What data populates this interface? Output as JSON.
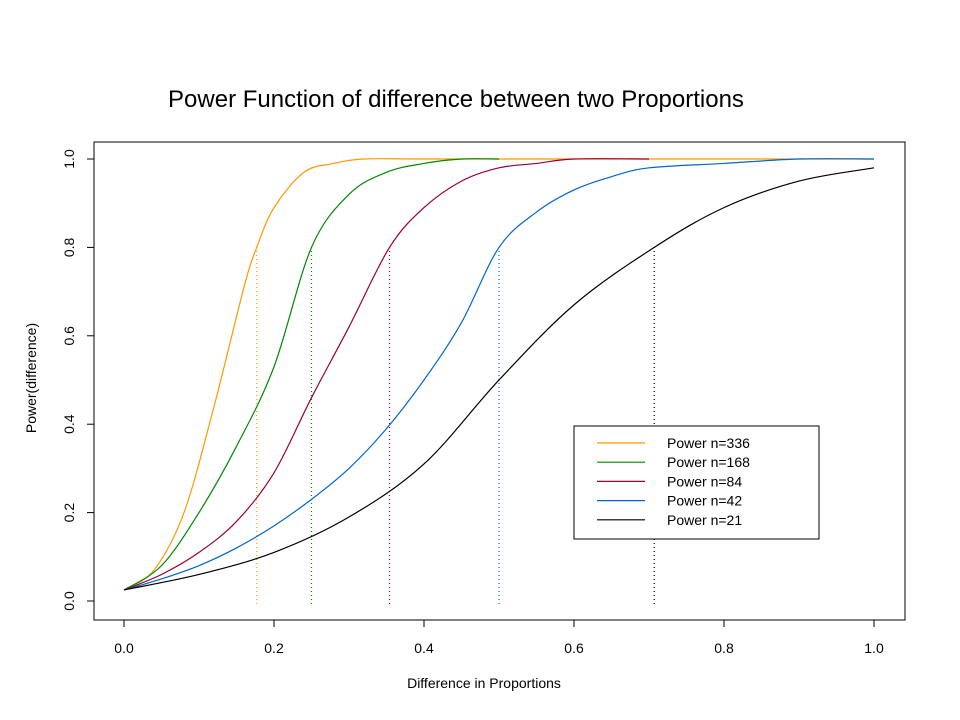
{
  "chart_data": {
    "type": "line",
    "title": "Power Function of difference between two Proportions",
    "xlabel": "Difference in Proportions",
    "ylabel": "Power(difference)",
    "xlim": [
      0.0,
      1.0
    ],
    "ylim": [
      0.0,
      1.0
    ],
    "x_ticks": [
      "0.0",
      "0.2",
      "0.4",
      "0.6",
      "0.8",
      "1.0"
    ],
    "y_ticks": [
      "0.0",
      "0.2",
      "0.4",
      "0.6",
      "0.8",
      "1.0"
    ],
    "grid": false,
    "legend": {
      "placement": "bottom-right",
      "entries": [
        "Power n=336",
        "Power n=168",
        "Power n=84",
        "Power n=42",
        "Power n=21"
      ]
    },
    "series": [
      {
        "name": "Power n=336",
        "color": "#ff9900",
        "marker_x": 0.177,
        "x": [
          0.0,
          0.04,
          0.08,
          0.12,
          0.16,
          0.177,
          0.2,
          0.24,
          0.28,
          0.32,
          0.4,
          0.6,
          1.0
        ],
        "y": [
          0.025,
          0.07,
          0.2,
          0.44,
          0.71,
          0.8,
          0.89,
          0.97,
          0.99,
          1.0,
          1.0,
          1.0,
          1.0
        ]
      },
      {
        "name": "Power n=168",
        "color": "#008800",
        "marker_x": 0.25,
        "x": [
          0.0,
          0.05,
          0.1,
          0.15,
          0.2,
          0.25,
          0.3,
          0.35,
          0.4,
          0.45,
          0.5
        ],
        "y": [
          0.025,
          0.08,
          0.2,
          0.35,
          0.53,
          0.8,
          0.92,
          0.97,
          0.99,
          1.0,
          1.0
        ]
      },
      {
        "name": "Power n=84",
        "color": "#990033",
        "marker_x": 0.354,
        "x": [
          0.0,
          0.05,
          0.1,
          0.15,
          0.2,
          0.25,
          0.3,
          0.354,
          0.4,
          0.45,
          0.5,
          0.55,
          0.6,
          0.7
        ],
        "y": [
          0.025,
          0.06,
          0.11,
          0.18,
          0.29,
          0.46,
          0.62,
          0.8,
          0.89,
          0.95,
          0.98,
          0.99,
          1.0,
          1.0
        ]
      },
      {
        "name": "Power n=42",
        "color": "#0066cc",
        "marker_x": 0.5,
        "x": [
          0.0,
          0.05,
          0.1,
          0.15,
          0.2,
          0.25,
          0.3,
          0.35,
          0.4,
          0.45,
          0.5,
          0.55,
          0.6,
          0.65,
          0.7,
          0.8,
          0.9,
          1.0
        ],
        "y": [
          0.025,
          0.05,
          0.08,
          0.12,
          0.17,
          0.23,
          0.3,
          0.39,
          0.5,
          0.63,
          0.8,
          0.88,
          0.93,
          0.96,
          0.98,
          0.99,
          1.0,
          1.0
        ]
      },
      {
        "name": "Power n=21",
        "color": "#000000",
        "marker_x": 0.707,
        "x": [
          0.0,
          0.1,
          0.2,
          0.3,
          0.4,
          0.5,
          0.6,
          0.707,
          0.8,
          0.9,
          1.0
        ],
        "y": [
          0.025,
          0.06,
          0.11,
          0.19,
          0.31,
          0.5,
          0.67,
          0.8,
          0.89,
          0.95,
          0.98
        ]
      }
    ]
  }
}
